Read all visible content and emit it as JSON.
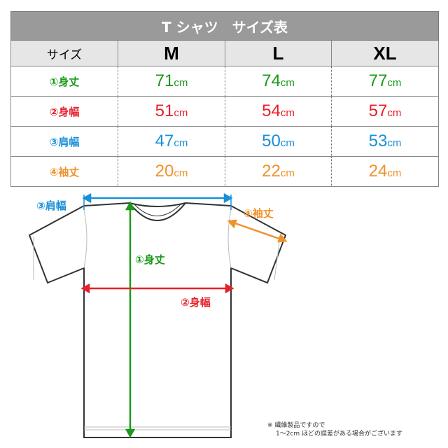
{
  "title": "T シャツ　サイズ表",
  "header": {
    "label": "サイズ",
    "sizes": [
      "M",
      "L",
      "XL"
    ]
  },
  "rows": [
    {
      "label": "①身丈",
      "color": "#1a9a1a",
      "values": [
        "71",
        "74",
        "77"
      ]
    },
    {
      "label": "②身幅",
      "color": "#e8202a",
      "values": [
        "51",
        "54",
        "57"
      ]
    },
    {
      "label": "③肩幅",
      "color": "#1a8fd8",
      "values": [
        "47",
        "50",
        "53"
      ]
    },
    {
      "label": "④袖丈",
      "color": "#f0922a",
      "values": [
        "20",
        "22",
        "24"
      ]
    }
  ],
  "unit": "cm",
  "diagram": {
    "shoulder": "③肩幅",
    "sleeve": "④袖丈",
    "length": "①身丈",
    "width": "②身幅"
  },
  "note": {
    "line1": "※ 繊維製品ですので",
    "line2": "1～2cm ほどの誤差がある場合がございます"
  }
}
